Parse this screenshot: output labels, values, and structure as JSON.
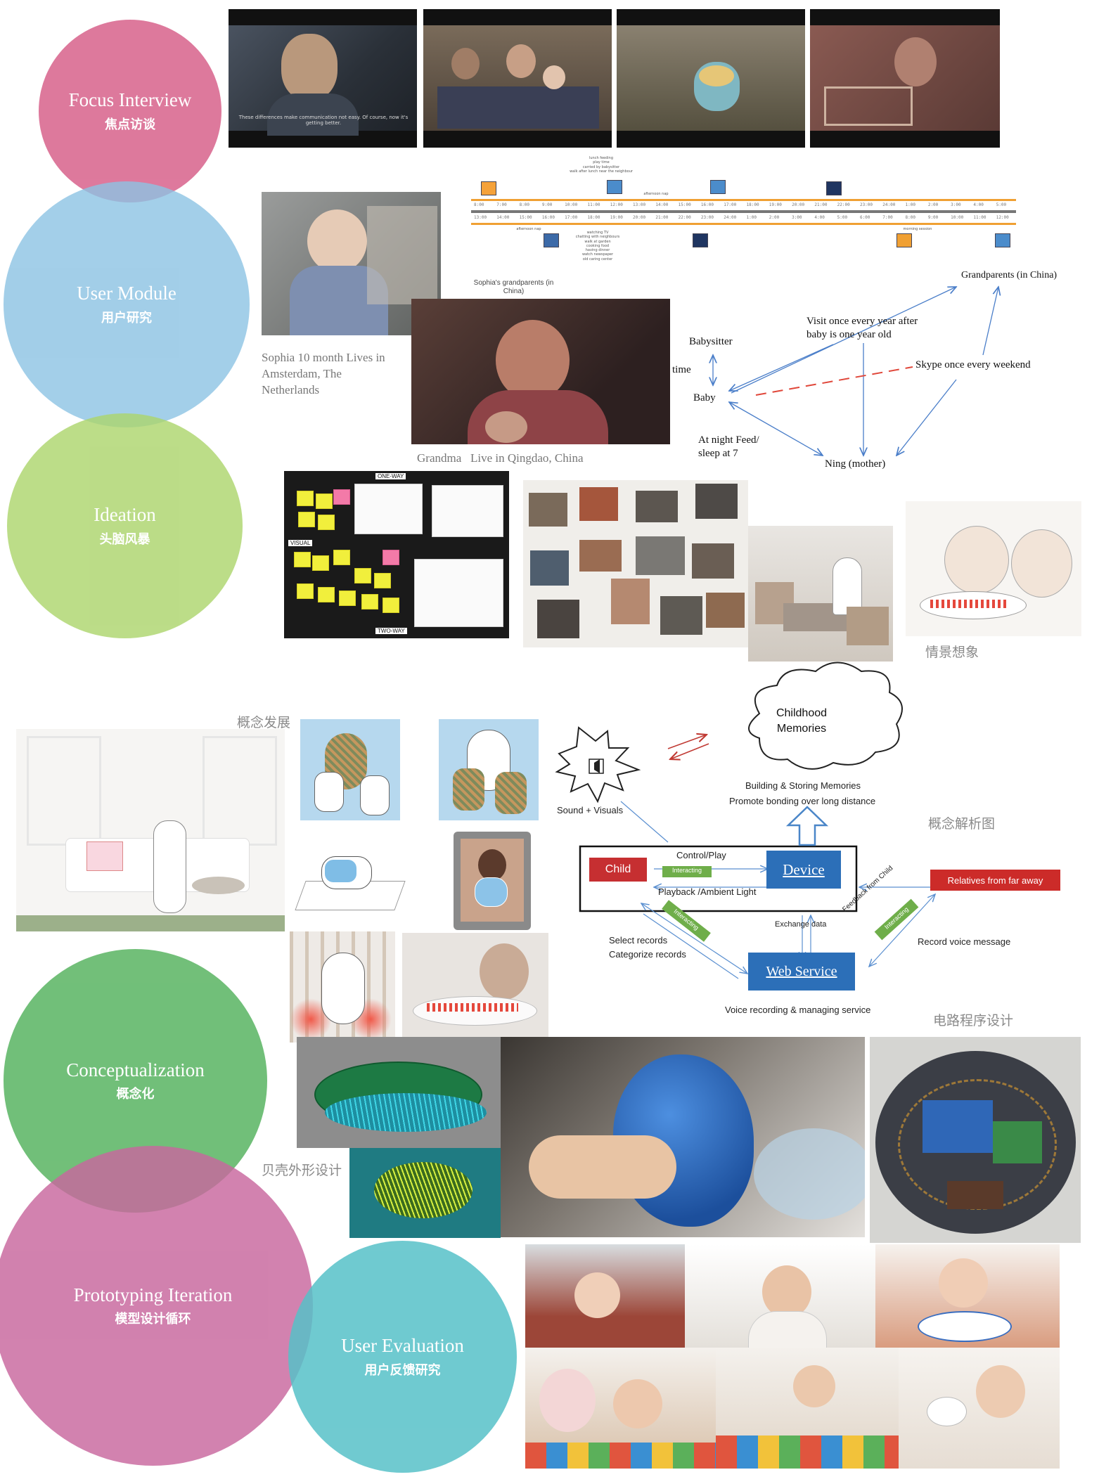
{
  "stages": {
    "focus_interview": {
      "en": "Focus Interview",
      "zh": "焦点访谈"
    },
    "user_module": {
      "en": "User Module",
      "zh": "用户研究"
    },
    "ideation": {
      "en": "Ideation",
      "zh": "头脑风暴"
    },
    "conceptualization": {
      "en": "Conceptualization",
      "zh": "概念化"
    },
    "prototyping": {
      "en": "Prototyping Iteration",
      "zh": "模型设计循环"
    },
    "user_evaluation": {
      "en": "User Evaluation",
      "zh": "用户反馈研究"
    }
  },
  "interview": {
    "subtitle": "These differences make communication not easy. Of course, now it's getting better."
  },
  "timeline": {
    "top_ticks": [
      "8:00",
      "7:00",
      "8:00",
      "9:00",
      "10:00",
      "11:00",
      "12:00",
      "13:00",
      "14:00",
      "15:00",
      "16:00",
      "17:00",
      "18:00",
      "19:00",
      "20:00",
      "21:00",
      "22:00",
      "23:00",
      "24:00",
      "1:00",
      "2:00",
      "3:00",
      "4:00",
      "5:00"
    ],
    "bottom_ticks": [
      "13:00",
      "14:00",
      "15:00",
      "16:00",
      "17:00",
      "18:00",
      "19:00",
      "20:00",
      "21:00",
      "22:00",
      "23:00",
      "24:00",
      "1:00",
      "2:00",
      "3:00",
      "4:00",
      "5:00",
      "6:00",
      "7:00",
      "8:00",
      "9:00",
      "10:00",
      "11:00",
      "12:00"
    ],
    "note_top": [
      "lunch feeding",
      "play time",
      "carried by babysitter",
      "walk after lunch near the neighbour"
    ],
    "note_nap1": "afternoon nap",
    "note_nap2": "afternoon nap",
    "note_bottom": [
      "watching TV",
      "chatting with neighbours",
      "walk at garden",
      "cooking food",
      "having dinner",
      "watch newspaper",
      "old caring center"
    ],
    "note_morning": "morning session"
  },
  "user_module": {
    "sophia_caption": "Sophia 10 month Lives in Amsterdam, The Netherlands",
    "grandparents_label": "Sophia's grandparents (in China)",
    "grandma_caption": "Grandma   Live in Qingdao, China"
  },
  "relationship": {
    "grandparents": "Grandparents (in China)",
    "visit": "Visit once every year after baby is one year old",
    "babysitter": "Babysitter",
    "time": "time",
    "baby": "Baby",
    "skype": "Skype once every weekend",
    "night": "At night Feed/ sleep at 7",
    "mother": "Ning (mother)"
  },
  "ideation": {
    "board_top": "ONE-WAY",
    "board_visual": "VISUAL",
    "board_bottom": "TWO-WAY",
    "scenario_caption": "情景想象"
  },
  "concept": {
    "dev_caption": "概念发展",
    "analysis_caption": "概念解析图",
    "circuit_caption": "电路程序设计",
    "shell_caption": "贝壳外形设计"
  },
  "concept_diagram": {
    "cloud": "Childhood Memories",
    "building": "Building & Storing Memories",
    "bonding": "Promote bonding over long distance",
    "sound": "Sound + Visuals",
    "control": "Control/Play",
    "interacting": "Interacting",
    "playback": "Playback /Ambient Light",
    "child": "Child",
    "device": "Device",
    "relatives": "Relatives from far away",
    "exchange": "Exchange data",
    "feedback": "Feedback from Child",
    "select": "Select records",
    "categorize": "Categorize records",
    "web": "Web Service",
    "record_voice": "Record voice message",
    "voice_service": "Voice recording & managing service"
  },
  "colors": {
    "pink": "#d9678f",
    "blue": "#8cc3e3",
    "lime": "#abd46a",
    "green": "#59b462",
    "mauve": "#c8669d",
    "teal": "#57c1c8",
    "child_red": "#c62f31",
    "device_blue": "#2c6fb8",
    "relatives_red": "#cc2b29",
    "interact_green": "#6fae4a"
  }
}
